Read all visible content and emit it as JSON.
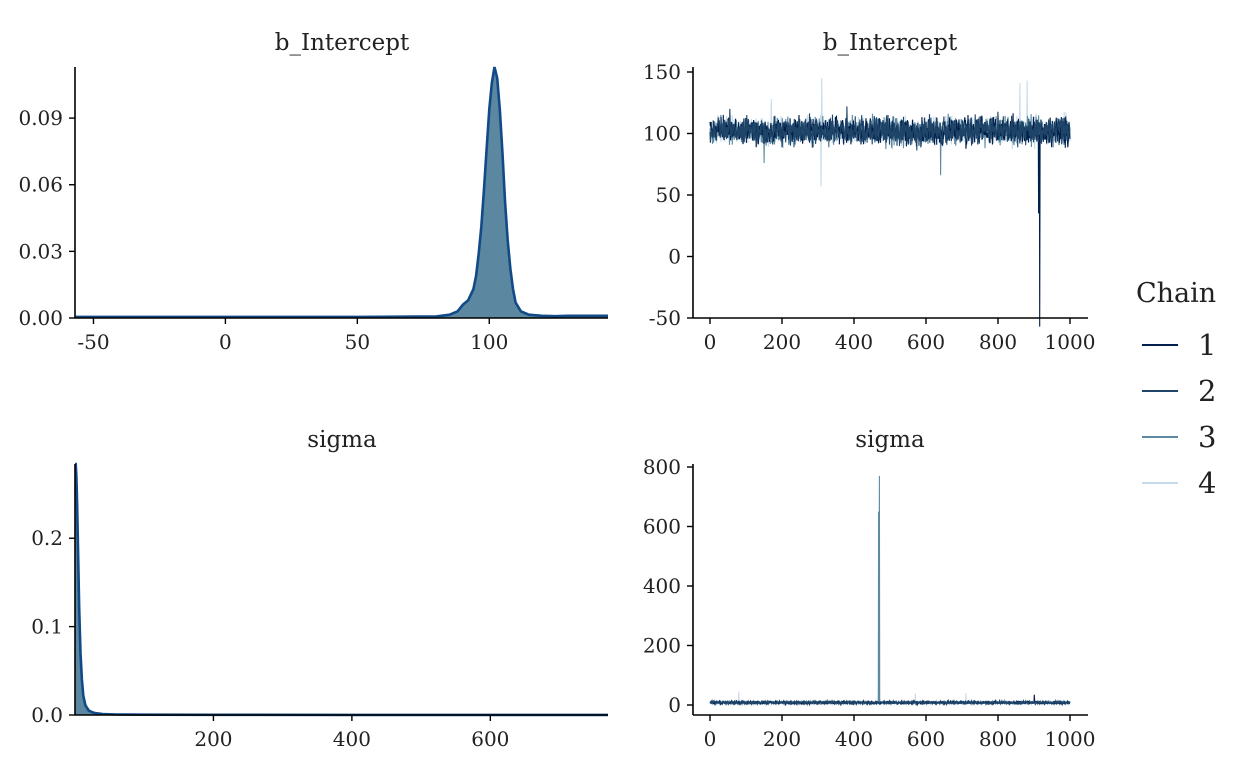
{
  "colors": {
    "chain1": "#011f4b",
    "chain2": "#1e4468",
    "chain3": "#5d8aa3",
    "chain4": "#c6dbea",
    "density_fill": "#5b87a1",
    "density_line": "#114a86",
    "axis": "#000000"
  },
  "legend": {
    "title": "Chain",
    "items": [
      {
        "label": "1",
        "color": "#011f4b"
      },
      {
        "label": "2",
        "color": "#1e4468"
      },
      {
        "label": "3",
        "color": "#5d8aa3"
      },
      {
        "label": "4",
        "color": "#c6dbea"
      }
    ]
  },
  "chart_data": [
    {
      "type": "area",
      "panel": "density-b-intercept",
      "title": "b_Intercept",
      "xlim": [
        -57,
        145
      ],
      "ylim": [
        0,
        0.113
      ],
      "x_ticks": [
        -50,
        0,
        50,
        100
      ],
      "x_tick_labels": [
        "-50",
        "0",
        "50",
        "100"
      ],
      "y_ticks": [
        0,
        0.03,
        0.06,
        0.09
      ],
      "y_tick_labels": [
        "0.00",
        "0.03",
        "0.06",
        "0.09"
      ],
      "density": {
        "x": [
          -57,
          0,
          50,
          80,
          85,
          88,
          90,
          92,
          94,
          95,
          96,
          97,
          98,
          99,
          100,
          101,
          102,
          103,
          104,
          105,
          106,
          107,
          108,
          109,
          110,
          112,
          115,
          120,
          125,
          130,
          145
        ],
        "y": [
          0.0005,
          0.0005,
          0.0005,
          0.0007,
          0.0015,
          0.003,
          0.006,
          0.008,
          0.013,
          0.019,
          0.029,
          0.041,
          0.058,
          0.076,
          0.094,
          0.106,
          0.113,
          0.108,
          0.094,
          0.074,
          0.052,
          0.035,
          0.022,
          0.013,
          0.007,
          0.003,
          0.0015,
          0.001,
          0.0008,
          0.001,
          0.001
        ]
      }
    },
    {
      "type": "line",
      "panel": "trace-b-intercept",
      "title": "b_Intercept",
      "xlim": [
        0,
        1000
      ],
      "ylim": [
        -50,
        150
      ],
      "x_ticks": [
        0,
        200,
        400,
        600,
        800,
        1000
      ],
      "x_tick_labels": [
        "0",
        "200",
        "400",
        "600",
        "800",
        "1000"
      ],
      "y_ticks": [
        -50,
        0,
        50,
        100,
        150
      ],
      "y_tick_labels": [
        "-50",
        "0",
        "50",
        "100",
        "150"
      ],
      "trace": {
        "center": 102,
        "spread": 9,
        "n": 1000,
        "spikes": [
          {
            "chain": 1,
            "x": 915,
            "y": -57
          },
          {
            "chain": 1,
            "x": 912,
            "y": 35
          },
          {
            "chain": 2,
            "x": 55,
            "y": 120
          },
          {
            "chain": 2,
            "x": 380,
            "y": 122
          },
          {
            "chain": 3,
            "x": 640,
            "y": 66
          },
          {
            "chain": 3,
            "x": 150,
            "y": 76
          },
          {
            "chain": 4,
            "x": 310,
            "y": 145
          },
          {
            "chain": 4,
            "x": 308,
            "y": 57
          },
          {
            "chain": 4,
            "x": 880,
            "y": 143
          },
          {
            "chain": 4,
            "x": 170,
            "y": 128
          },
          {
            "chain": 4,
            "x": 860,
            "y": 141
          }
        ]
      }
    },
    {
      "type": "area",
      "panel": "density-sigma",
      "title": "sigma",
      "xlim": [
        0,
        770
      ],
      "ylim": [
        0,
        0.284
      ],
      "x_ticks": [
        200,
        400,
        600
      ],
      "x_tick_labels": [
        "200",
        "400",
        "600"
      ],
      "y_ticks": [
        0,
        0.1,
        0.2
      ],
      "y_tick_labels": [
        "0.0",
        "0.1",
        "0.2"
      ],
      "density": {
        "x": [
          0,
          1,
          2,
          3,
          4,
          5,
          6,
          8,
          10,
          12,
          15,
          20,
          25,
          30,
          40,
          60,
          100,
          200,
          400,
          600,
          770
        ],
        "y": [
          0.284,
          0.284,
          0.27,
          0.24,
          0.2,
          0.16,
          0.12,
          0.07,
          0.04,
          0.022,
          0.011,
          0.005,
          0.003,
          0.002,
          0.001,
          0.0006,
          0.0003,
          0.0002,
          0.0001,
          0.0001,
          0.0001
        ]
      }
    },
    {
      "type": "line",
      "panel": "trace-sigma",
      "title": "sigma",
      "xlim": [
        0,
        1000
      ],
      "ylim": [
        0,
        800
      ],
      "x_ticks": [
        0,
        200,
        400,
        600,
        800,
        1000
      ],
      "x_tick_labels": [
        "0",
        "200",
        "400",
        "600",
        "800",
        "1000"
      ],
      "y_ticks": [
        0,
        200,
        400,
        600,
        800
      ],
      "y_tick_labels": [
        "0",
        "200",
        "400",
        "600",
        "800"
      ],
      "trace": {
        "center": 8,
        "spread": 4,
        "n": 1000,
        "spikes": [
          {
            "chain": 3,
            "x": 468,
            "y": 650
          },
          {
            "chain": 3,
            "x": 470,
            "y": 770
          },
          {
            "chain": 4,
            "x": 80,
            "y": 45
          },
          {
            "chain": 4,
            "x": 710,
            "y": 40
          },
          {
            "chain": 1,
            "x": 900,
            "y": 35
          },
          {
            "chain": 4,
            "x": 570,
            "y": 38
          }
        ]
      }
    }
  ]
}
